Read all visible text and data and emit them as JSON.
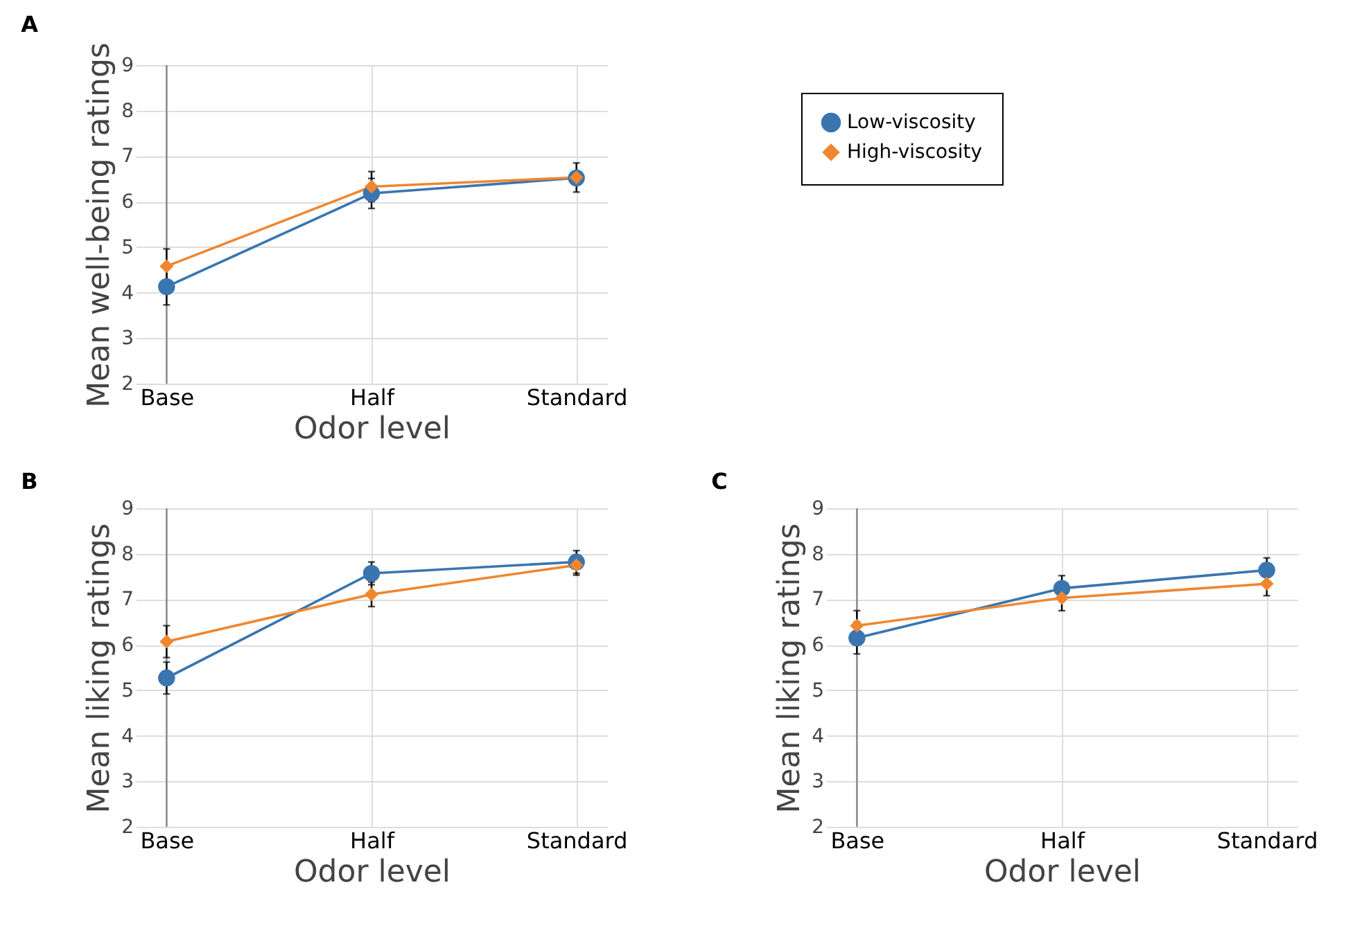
{
  "chart_data": [
    {
      "type": "line",
      "title": "A",
      "xlabel": "Odor level",
      "ylabel": "Mean well-being ratings",
      "categories": [
        "Base",
        "Half",
        "Standard"
      ],
      "ylim": [
        2,
        9
      ],
      "yticks": [
        2,
        3,
        4,
        5,
        6,
        7,
        8,
        9
      ],
      "grid": true,
      "legend": "right",
      "series": [
        {
          "name": "Low-viscosity",
          "color": "#3a75b0",
          "marker": "circle",
          "values": [
            4.13,
            6.18,
            6.52
          ],
          "errors": [
            0.4,
            0.33,
            null
          ]
        },
        {
          "name": "High-viscosity",
          "color": "#f0862f",
          "marker": "diamond",
          "values": [
            4.58,
            6.33,
            6.53
          ],
          "errors": [
            0.38,
            0.33,
            0.32
          ]
        }
      ]
    },
    {
      "type": "line",
      "title": "B",
      "xlabel": "Odor level",
      "ylabel": "Mean liking ratings",
      "categories": [
        "Base",
        "Half",
        "Standard"
      ],
      "ylim": [
        2,
        9
      ],
      "yticks": [
        2,
        3,
        4,
        5,
        6,
        7,
        8,
        9
      ],
      "grid": true,
      "series": [
        {
          "name": "Low-viscosity",
          "color": "#3a75b0",
          "marker": "circle",
          "values": [
            5.27,
            7.57,
            7.82
          ],
          "errors": [
            0.35,
            0.25,
            0.25
          ]
        },
        {
          "name": "High-viscosity",
          "color": "#f0862f",
          "marker": "diamond",
          "values": [
            6.07,
            7.11,
            7.75
          ],
          "errors": [
            0.35,
            0.27,
            0.22
          ]
        }
      ]
    },
    {
      "type": "line",
      "title": "C",
      "xlabel": "Odor level",
      "ylabel": "Mean liking ratings",
      "categories": [
        "Base",
        "Half",
        "Standard"
      ],
      "ylim": [
        2,
        9
      ],
      "yticks": [
        2,
        3,
        4,
        5,
        6,
        7,
        8,
        9
      ],
      "grid": true,
      "series": [
        {
          "name": "Low-viscosity",
          "color": "#3a75b0",
          "marker": "circle",
          "values": [
            6.15,
            7.24,
            7.64
          ],
          "errors": [
            0.35,
            0.28,
            0.27
          ]
        },
        {
          "name": "High-viscosity",
          "color": "#f0862f",
          "marker": "diamond",
          "values": [
            6.42,
            7.03,
            7.34
          ],
          "errors": [
            0.33,
            0.28,
            0.26
          ]
        }
      ]
    }
  ]
}
